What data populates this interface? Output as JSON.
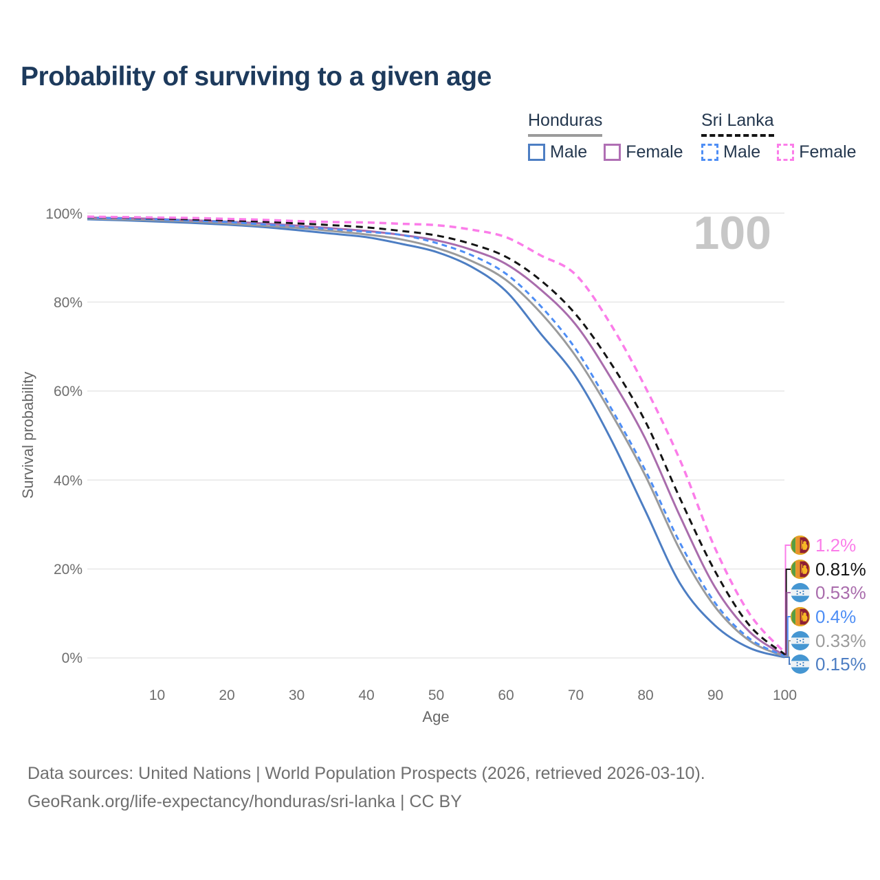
{
  "title": "Probability of surviving to a given age",
  "watermark": "100",
  "legend": {
    "groups": [
      {
        "label": "Honduras",
        "line_style": "solid",
        "underline_color": "#9b9b9b",
        "items": [
          {
            "label": "Male",
            "color": "#4d7ec3"
          },
          {
            "label": "Female",
            "color": "#b06fb4"
          }
        ]
      },
      {
        "label": "Sri Lanka",
        "line_style": "dashed",
        "underline_color": "#141414",
        "items": [
          {
            "label": "Male",
            "color": "#4e8ef5"
          },
          {
            "label": "Female",
            "color": "#fb7de9"
          }
        ]
      }
    ]
  },
  "chart_data": {
    "type": "line",
    "title": "Probability of surviving to a given age",
    "xlabel": "Age",
    "ylabel": "Survival probability",
    "xlim": [
      0,
      100
    ],
    "ylim": [
      0,
      100
    ],
    "grid": "horizontal",
    "x_ticks": [
      10,
      20,
      30,
      40,
      50,
      60,
      70,
      80,
      90,
      100
    ],
    "y_tick_labels": [
      "100%",
      "80%",
      "60%",
      "40%",
      "20%",
      "0%"
    ],
    "ages": [
      0,
      5,
      10,
      15,
      20,
      25,
      30,
      35,
      40,
      45,
      50,
      55,
      60,
      65,
      70,
      75,
      80,
      85,
      90,
      95,
      100
    ],
    "series": [
      {
        "id": "honduras-male",
        "name": "Honduras Male",
        "country": "Honduras",
        "sex": "Male",
        "color": "#4d7ec3",
        "dash": "",
        "width": 3,
        "values": [
          98.6,
          98.4,
          98.1,
          97.8,
          97.4,
          96.9,
          96.2,
          95.4,
          94.6,
          93.1,
          91.3,
          88.0,
          82.5,
          72.9,
          63.3,
          49.4,
          33.1,
          16.7,
          7.3,
          2.2,
          0.15
        ]
      },
      {
        "id": "honduras-both",
        "name": "Honduras Both sexes",
        "country": "Honduras",
        "sex": "Both",
        "color": "#9b9b9b",
        "dash": "",
        "width": 3,
        "values": [
          98.8,
          98.6,
          98.4,
          98.1,
          97.7,
          97.2,
          96.7,
          96.0,
          95.2,
          94.1,
          92.2,
          89.3,
          85.0,
          77.6,
          67.9,
          55.3,
          41.0,
          24.2,
          11.5,
          3.8,
          0.33
        ]
      },
      {
        "id": "honduras-female",
        "name": "Honduras Female",
        "country": "Honduras",
        "sex": "Female",
        "color": "#a96cac",
        "dash": "",
        "width": 3,
        "values": [
          99.0,
          98.9,
          98.7,
          98.4,
          98.1,
          97.7,
          97.2,
          96.6,
          96.0,
          95.1,
          93.9,
          91.8,
          88.6,
          82.8,
          75.0,
          63.1,
          49.3,
          31.8,
          15.9,
          5.8,
          0.53
        ]
      },
      {
        "id": "sri-lanka-male",
        "name": "Sri Lanka Male",
        "country": "Sri Lanka",
        "sex": "Male",
        "color": "#4e8ef5",
        "dash": "8 6",
        "width": 3,
        "values": [
          99.0,
          98.8,
          98.6,
          98.3,
          98.0,
          97.5,
          97.0,
          96.4,
          95.8,
          95.1,
          93.3,
          90.6,
          86.4,
          79.1,
          69.5,
          56.4,
          42.2,
          25.8,
          12.4,
          4.3,
          0.4
        ]
      },
      {
        "id": "sri-lanka-both",
        "name": "Sri Lanka Both sexes",
        "country": "Sri Lanka",
        "sex": "Both",
        "color": "#141414",
        "dash": "10 7",
        "width": 3,
        "values": [
          99.1,
          99.0,
          98.8,
          98.6,
          98.4,
          98.1,
          97.7,
          97.3,
          96.8,
          96.0,
          95.0,
          93.1,
          90.2,
          84.9,
          77.3,
          66.4,
          53.2,
          35.8,
          19.5,
          7.2,
          0.81
        ]
      },
      {
        "id": "sri-lanka-female",
        "name": "Sri Lanka Female",
        "country": "Sri Lanka",
        "sex": "Female",
        "color": "#fb7de9",
        "dash": "10 7",
        "width": 3.5,
        "values": [
          99.2,
          99.1,
          99.0,
          98.9,
          98.7,
          98.5,
          98.2,
          98.0,
          97.9,
          97.6,
          97.3,
          96.3,
          94.6,
          90.5,
          86.2,
          75.1,
          60.9,
          44.4,
          24.7,
          9.8,
          1.2
        ]
      }
    ]
  },
  "end_labels": [
    {
      "value": "1.2%",
      "series_index": 5,
      "flag": "sri-lanka"
    },
    {
      "value": "0.81%",
      "series_index": 4,
      "flag": "sri-lanka"
    },
    {
      "value": "0.53%",
      "series_index": 2,
      "flag": "honduras"
    },
    {
      "value": "0.4%",
      "series_index": 3,
      "flag": "sri-lanka"
    },
    {
      "value": "0.33%",
      "series_index": 1,
      "flag": "honduras"
    },
    {
      "value": "0.15%",
      "series_index": 0,
      "flag": "honduras"
    }
  ],
  "footer": {
    "line1": "Data sources: United Nations | World Population Prospects (2026, retrieved 2026-03-10).",
    "line2": "GeoRank.org/life-expectancy/honduras/sri-lanka | CC BY"
  }
}
